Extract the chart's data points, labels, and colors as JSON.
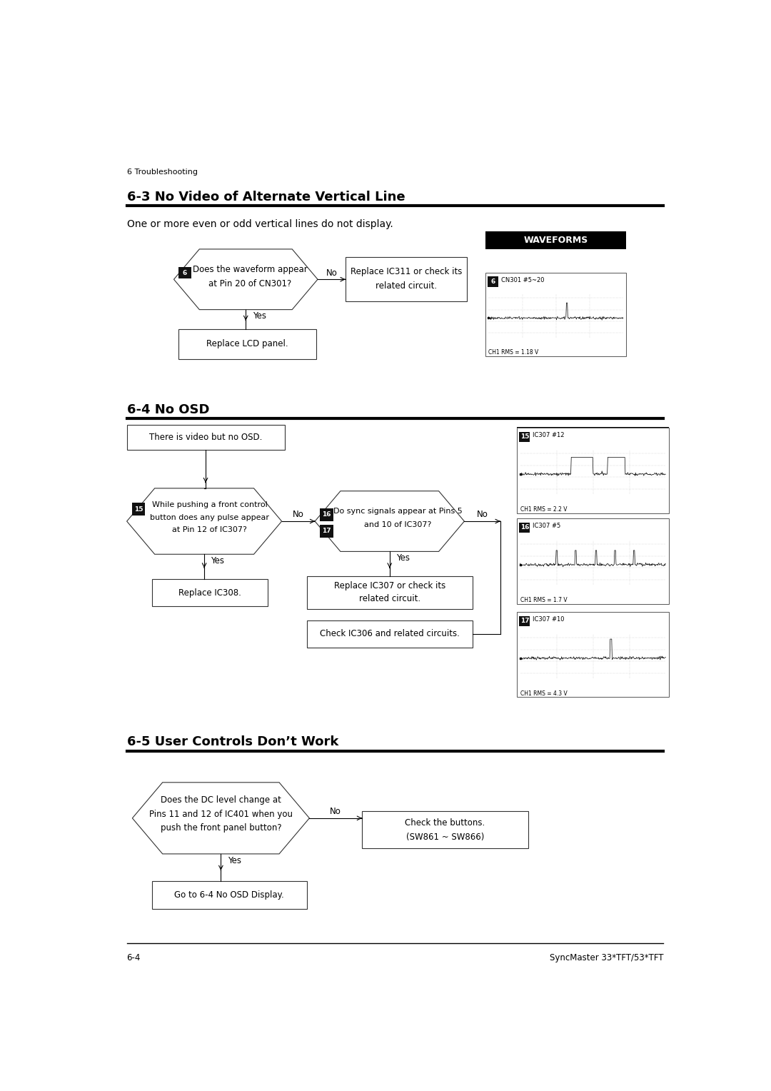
{
  "page_header": "6 Troubleshooting",
  "page_footer_left": "6-4",
  "page_footer_right": "SyncMaster 33*TFT/53*TFT",
  "bg_color": "#ffffff",
  "section1_title": "6-3 No Video of Alternate Vertical Line",
  "section1_subtitle": "One or more even or odd vertical lines do not display.",
  "section2_title": "6-4 No OSD",
  "section3_title": "6-5 User Controls Don’t Work",
  "waveforms_bg": "#000000",
  "waveforms_text": "#ffffff",
  "waveforms_label": "WAVEFORMS",
  "step_badge_bg": "#111111",
  "step_badge_text": "#ffffff",
  "diamond_ec": "#333333",
  "box_ec": "#333333"
}
